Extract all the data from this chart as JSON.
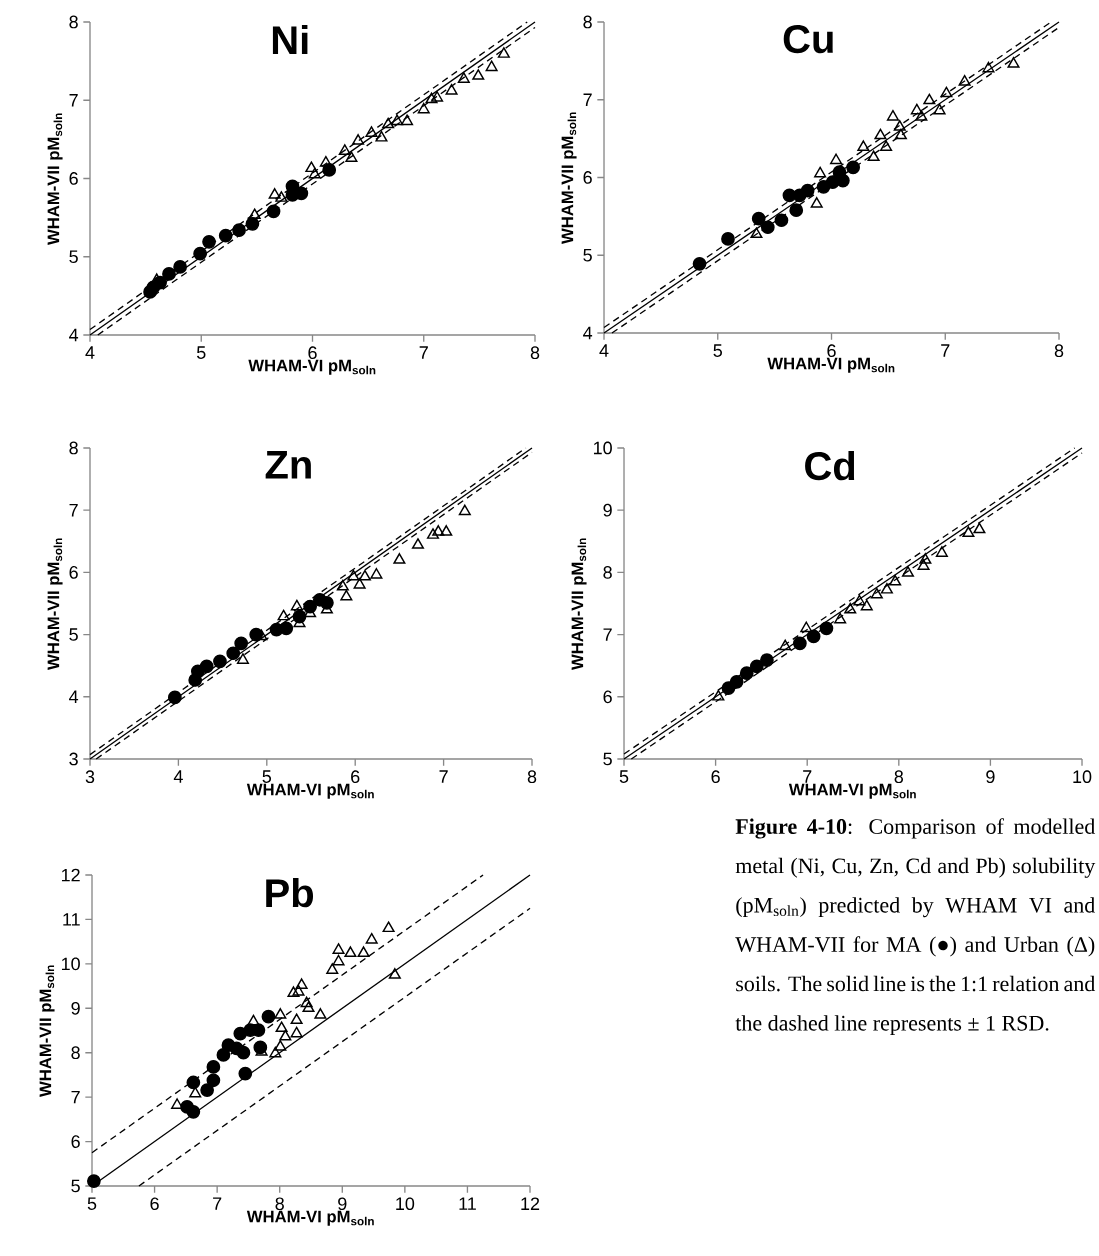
{
  "chart_data": [
    {
      "type": "scatter",
      "title": "Ni",
      "xlabel": "WHAM-VI pM$_{soln}$",
      "ylabel": "WHAM-VII pM$_{soln}$",
      "xlim": [
        4,
        8
      ],
      "ylim": [
        4,
        8
      ],
      "xticks": [
        4,
        5,
        6,
        7,
        8
      ],
      "yticks": [
        4,
        5,
        6,
        7,
        8
      ],
      "series": [
        {
          "type": "scatter",
          "marker": "circle",
          "color": "#000000",
          "x": [
            4.54,
            4.57,
            4.63,
            4.71,
            4.81,
            4.99,
            5.07,
            5.22,
            5.34,
            5.46,
            5.65,
            5.82,
            5.82,
            5.9,
            6.15
          ],
          "values": [
            4.55,
            4.61,
            4.67,
            4.78,
            4.87,
            5.04,
            5.19,
            5.27,
            5.34,
            5.42,
            5.58,
            5.79,
            5.9,
            5.81,
            6.11
          ]
        },
        {
          "type": "scatter",
          "marker": "triangle",
          "color": "#000000",
          "x": [
            4.6,
            5.48,
            5.66,
            5.72,
            5.99,
            6.02,
            6.12,
            6.29,
            6.35,
            6.41,
            6.53,
            6.62,
            6.68,
            6.76,
            6.85,
            7.0,
            7.07,
            7.12,
            7.25,
            7.36,
            7.49,
            7.61,
            7.72
          ],
          "values": [
            4.7,
            5.53,
            5.79,
            5.75,
            6.13,
            6.05,
            6.2,
            6.35,
            6.26,
            6.48,
            6.58,
            6.52,
            6.69,
            6.73,
            6.73,
            6.88,
            7.01,
            7.03,
            7.12,
            7.27,
            7.31,
            7.42,
            7.59
          ]
        },
        {
          "type": "line",
          "line_style": "solid",
          "color": "#000000",
          "x": [
            4,
            8
          ],
          "values": [
            4,
            8
          ]
        },
        {
          "type": "line",
          "line_style": "dashed",
          "color": "#000000",
          "x": [
            4,
            7.93
          ],
          "values": [
            4.07,
            8
          ]
        },
        {
          "type": "line",
          "line_style": "dashed",
          "color": "#000000",
          "x": [
            4.07,
            8
          ],
          "values": [
            4,
            7.93
          ]
        }
      ]
    },
    {
      "type": "scatter",
      "title": "Cu",
      "xlabel": "WHAM-VI pM$_{soln}$",
      "ylabel": "WHAM-VII pM$_{soln}$",
      "xlim": [
        4,
        8
      ],
      "ylim": [
        4,
        8
      ],
      "xticks": [
        4,
        5,
        6,
        7,
        8
      ],
      "yticks": [
        4,
        5,
        6,
        7,
        8
      ],
      "series": [
        {
          "type": "scatter",
          "marker": "circle",
          "color": "#000000",
          "x": [
            4.84,
            5.09,
            5.36,
            5.44,
            5.56,
            5.63,
            5.69,
            5.72,
            5.79,
            5.93,
            6.01,
            6.1,
            6.07,
            6.19
          ],
          "values": [
            4.89,
            5.21,
            5.47,
            5.36,
            5.45,
            5.77,
            5.58,
            5.77,
            5.83,
            5.88,
            5.94,
            5.96,
            6.07,
            6.13
          ]
        },
        {
          "type": "scatter",
          "marker": "triangle",
          "color": "#000000",
          "x": [
            5.34,
            5.87,
            5.9,
            6.04,
            6.28,
            6.37,
            6.43,
            6.48,
            6.54,
            6.6,
            6.61,
            6.75,
            6.79,
            6.86,
            6.95,
            7.01,
            7.17,
            7.38,
            7.6
          ],
          "values": [
            5.27,
            5.66,
            6.05,
            6.22,
            6.39,
            6.26,
            6.54,
            6.39,
            6.78,
            6.65,
            6.54,
            6.86,
            6.78,
            6.99,
            6.86,
            7.08,
            7.23,
            7.4,
            7.46
          ]
        },
        {
          "type": "line",
          "line_style": "solid",
          "color": "#000000",
          "x": [
            4,
            8
          ],
          "values": [
            4,
            8
          ]
        },
        {
          "type": "line",
          "line_style": "dashed",
          "color": "#000000",
          "x": [
            4,
            7.93
          ],
          "values": [
            4.07,
            8
          ]
        },
        {
          "type": "line",
          "line_style": "dashed",
          "color": "#000000",
          "x": [
            4.07,
            8
          ],
          "values": [
            4,
            7.93
          ]
        }
      ]
    },
    {
      "type": "scatter",
      "title": "Zn",
      "xlabel": "WHAM-VI pM$_{soln}$",
      "ylabel": "WHAM-VII pM$_{soln}$",
      "xlim": [
        3,
        8
      ],
      "ylim": [
        3,
        8
      ],
      "xticks": [
        3,
        4,
        5,
        6,
        7,
        8
      ],
      "yticks": [
        3,
        4,
        5,
        6,
        7,
        8
      ],
      "series": [
        {
          "type": "scatter",
          "marker": "circle",
          "color": "#000000",
          "x": [
            3.96,
            4.19,
            4.22,
            4.32,
            4.47,
            4.62,
            4.71,
            4.88,
            5.11,
            5.22,
            5.37,
            5.49,
            5.6,
            5.68
          ],
          "values": [
            3.99,
            4.27,
            4.41,
            4.49,
            4.57,
            4.7,
            4.86,
            5.0,
            5.08,
            5.1,
            5.29,
            5.45,
            5.56,
            5.51
          ]
        },
        {
          "type": "scatter",
          "marker": "triangle",
          "color": "#000000",
          "x": [
            4.73,
            4.94,
            5.19,
            5.34,
            5.37,
            5.49,
            5.68,
            5.86,
            5.9,
            5.98,
            6.05,
            6.11,
            6.24,
            6.5,
            6.71,
            6.88,
            6.94,
            7.03,
            7.24
          ],
          "values": [
            4.59,
            4.97,
            5.29,
            5.45,
            5.18,
            5.34,
            5.4,
            5.77,
            5.61,
            5.93,
            5.8,
            5.93,
            5.96,
            6.2,
            6.44,
            6.6,
            6.65,
            6.65,
            6.98
          ]
        },
        {
          "type": "line",
          "line_style": "solid",
          "color": "#000000",
          "x": [
            3,
            8
          ],
          "values": [
            3,
            8
          ]
        },
        {
          "type": "line",
          "line_style": "dashed",
          "color": "#000000",
          "x": [
            3,
            7.93
          ],
          "values": [
            3.07,
            8
          ]
        },
        {
          "type": "line",
          "line_style": "dashed",
          "color": "#000000",
          "x": [
            3.07,
            8
          ],
          "values": [
            3,
            7.93
          ]
        }
      ]
    },
    {
      "type": "scatter",
      "title": "Cd",
      "xlabel": "WHAM-VI pM$_{soln}$",
      "ylabel": "WHAM-VII pM$_{soln}$",
      "xlim": [
        5,
        10
      ],
      "ylim": [
        5,
        10
      ],
      "xticks": [
        5,
        6,
        7,
        8,
        9,
        10
      ],
      "yticks": [
        5,
        6,
        7,
        8,
        9,
        10
      ],
      "series": [
        {
          "type": "scatter",
          "marker": "circle",
          "color": "#000000",
          "x": [
            6.14,
            6.23,
            6.34,
            6.45,
            6.56,
            6.92,
            7.07,
            7.21
          ],
          "values": [
            6.14,
            6.24,
            6.38,
            6.49,
            6.59,
            6.86,
            6.97,
            7.1
          ]
        },
        {
          "type": "scatter",
          "marker": "triangle",
          "color": "#000000",
          "x": [
            6.03,
            6.76,
            6.99,
            7.36,
            7.47,
            7.57,
            7.65,
            7.76,
            7.87,
            7.96,
            8.1,
            8.27,
            8.29,
            8.47,
            8.76,
            8.88
          ],
          "values": [
            6.0,
            6.81,
            7.1,
            7.24,
            7.4,
            7.53,
            7.45,
            7.64,
            7.72,
            7.85,
            7.99,
            8.1,
            8.2,
            8.31,
            8.63,
            8.69
          ]
        },
        {
          "type": "line",
          "line_style": "solid",
          "color": "#000000",
          "x": [
            5,
            10
          ],
          "values": [
            5,
            10
          ]
        },
        {
          "type": "line",
          "line_style": "dashed",
          "color": "#000000",
          "x": [
            5,
            9.92
          ],
          "values": [
            5.08,
            10
          ]
        },
        {
          "type": "line",
          "line_style": "dashed",
          "color": "#000000",
          "x": [
            5.08,
            10
          ],
          "values": [
            5,
            9.92
          ]
        }
      ]
    },
    {
      "type": "scatter",
      "title": "Pb",
      "xlabel": "WHAM-VI pM$_{soln}$",
      "ylabel": "WHAM-VII pM$_{soln}$",
      "xlim": [
        5,
        12
      ],
      "ylim": [
        5,
        12
      ],
      "xticks": [
        5,
        6,
        7,
        8,
        9,
        10,
        11,
        12
      ],
      "yticks": [
        5,
        6,
        7,
        8,
        9,
        10,
        11,
        12
      ],
      "series": [
        {
          "type": "scatter",
          "marker": "circle",
          "color": "#000000",
          "x": [
            5.03,
            6.52,
            6.62,
            6.62,
            6.84,
            6.94,
            6.94,
            7.1,
            7.18,
            7.31,
            7.37,
            7.42,
            7.45,
            7.53,
            7.66,
            7.69,
            7.82
          ],
          "values": [
            5.11,
            6.78,
            6.67,
            7.33,
            7.16,
            7.38,
            7.68,
            7.95,
            8.17,
            8.1,
            8.43,
            8.0,
            7.53,
            8.51,
            8.51,
            8.12,
            8.81
          ]
        },
        {
          "type": "scatter",
          "marker": "triangle",
          "color": "#000000",
          "x": [
            6.36,
            6.65,
            7.58,
            7.71,
            7.93,
            8.01,
            8.01,
            8.03,
            8.09,
            8.27,
            8.27,
            8.22,
            8.3,
            8.35,
            8.43,
            8.46,
            8.65,
            8.84,
            8.94,
            8.94,
            9.13,
            9.34,
            9.47,
            9.74,
            9.84
          ],
          "values": [
            6.82,
            7.08,
            8.7,
            8.02,
            7.98,
            8.13,
            8.85,
            8.55,
            8.36,
            8.43,
            8.73,
            9.34,
            9.37,
            9.52,
            9.11,
            9.0,
            8.85,
            9.86,
            10.05,
            10.31,
            10.24,
            10.24,
            10.54,
            10.8,
            9.75
          ]
        },
        {
          "type": "line",
          "line_style": "solid",
          "color": "#000000",
          "x": [
            5,
            12
          ],
          "values": [
            5,
            12
          ]
        },
        {
          "type": "line",
          "line_style": "dashed",
          "color": "#000000",
          "x": [
            5,
            11.25
          ],
          "values": [
            5.75,
            12
          ]
        },
        {
          "type": "line",
          "line_style": "dashed",
          "color": "#000000",
          "x": [
            5.75,
            12
          ],
          "values": [
            5,
            11.25
          ]
        }
      ]
    },
    {
      "type": "other",
      "annotations": [
        "**Figure 4-10**: Comparison of modelled metal (Ni, Cu, Zn, Cd and Pb) solubility (pM$_{soln}$) predicted by WHAM VI and WHAM-VII for MA (●) and Urban (Δ) soils. The solid line is the 1:1 relation and the dashed line represents ± 1 RSD."
      ]
    }
  ]
}
